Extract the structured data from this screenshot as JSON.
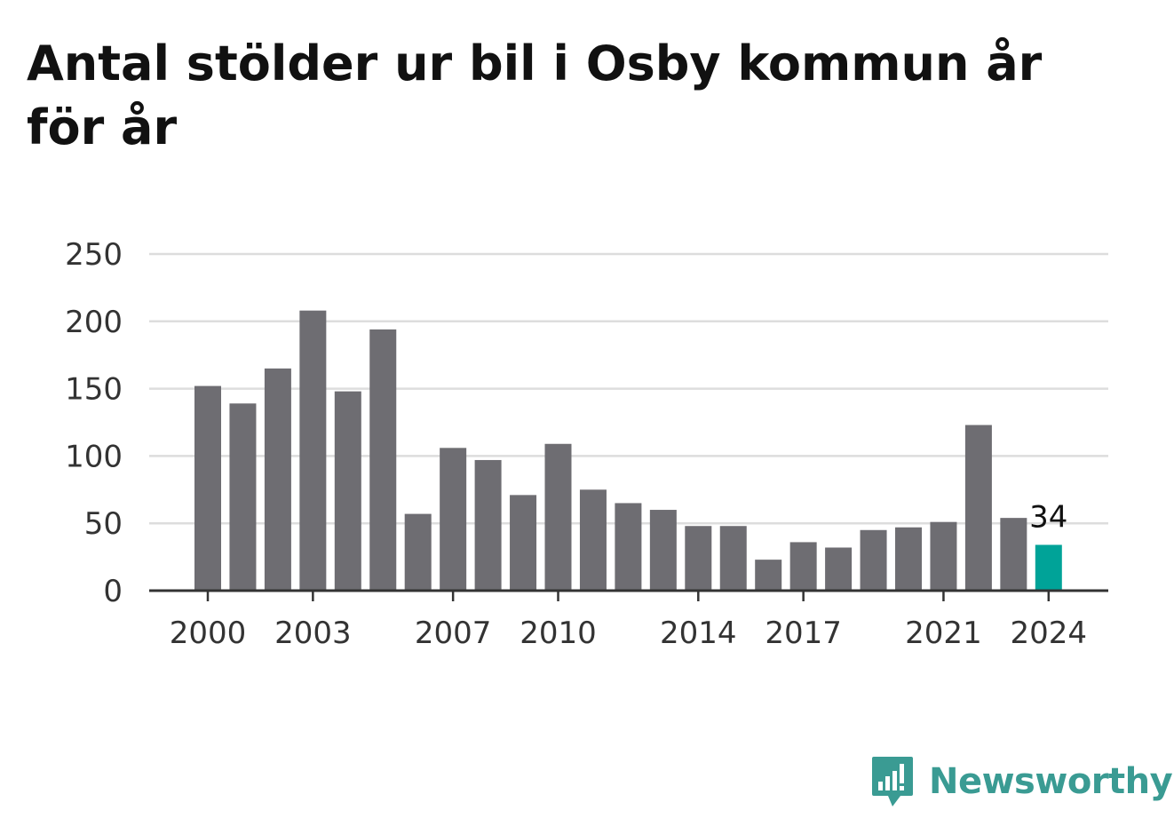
{
  "title": "Antal stölder ur bil i Osby kommun år för år",
  "brand": {
    "name": "Newsworthy",
    "icon": "newsworthy-logo-icon",
    "color": "#3a9b93"
  },
  "chart_data": {
    "type": "bar",
    "categories": [
      2000,
      2001,
      2002,
      2003,
      2004,
      2005,
      2006,
      2007,
      2008,
      2009,
      2010,
      2011,
      2012,
      2013,
      2014,
      2015,
      2016,
      2017,
      2018,
      2019,
      2020,
      2021,
      2022,
      2023,
      2024
    ],
    "values": [
      152,
      139,
      165,
      208,
      148,
      194,
      57,
      106,
      97,
      71,
      109,
      75,
      65,
      60,
      48,
      48,
      23,
      36,
      32,
      45,
      47,
      51,
      123,
      54,
      34
    ],
    "x_tick_labels": [
      "2000",
      "2003",
      "2007",
      "2010",
      "2014",
      "2017",
      "2021",
      "2024"
    ],
    "y_ticks": [
      0,
      50,
      100,
      150,
      200,
      250
    ],
    "ylim": [
      0,
      250
    ],
    "grid": true,
    "highlight": {
      "category": 2024,
      "label": "34"
    },
    "colors": {
      "bar": "#6e6d72",
      "highlight": "#00a398",
      "grid": "#dddddd",
      "axis": "#333333"
    }
  }
}
